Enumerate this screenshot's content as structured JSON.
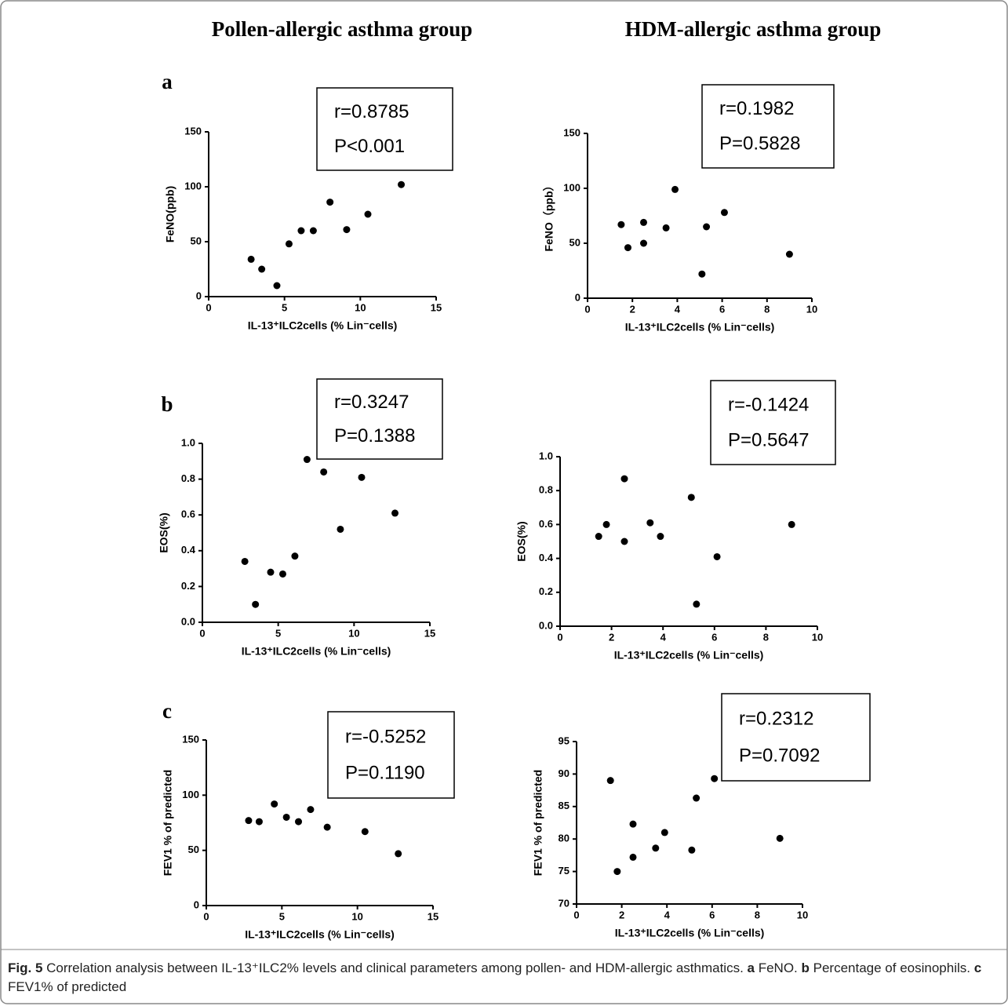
{
  "headers": [
    "Pollen-allergic asthma group",
    "HDM-allergic asthma group"
  ],
  "panels": [
    "a",
    "b",
    "c"
  ],
  "caption": [
    {
      "text": "Fig. 5",
      "bold": true
    },
    {
      "text": "  Correlation analysis between IL-13⁺ILC2% levels and clinical parameters among pollen- and HDM-allergic asthmatics. ",
      "bold": false
    },
    {
      "text": "a",
      "bold": true
    },
    {
      "text": " FeNO. ",
      "bold": false
    },
    {
      "text": "b",
      "bold": true
    },
    {
      "text": " Percentage of eosinophils. ",
      "bold": false
    },
    {
      "text": "c",
      "bold": true
    },
    {
      "text": " FEV1% of predicted",
      "bold": false
    }
  ],
  "chart_data": [
    {
      "type": "scatter",
      "color": "#000000",
      "xlabel": "IL-13⁺ILC2cells (% Lin⁻cells)",
      "ylabel": "FeNO(ppb)",
      "annotations": [
        "r=0.8785",
        "P<0.001"
      ],
      "x": [
        2.8,
        3.5,
        4.5,
        5.3,
        6.1,
        6.9,
        8.0,
        9.1,
        10.5,
        12.7
      ],
      "values": [
        34,
        25,
        10,
        48,
        60,
        60,
        86,
        61,
        75,
        102
      ],
      "xlim": [
        0,
        15
      ],
      "xticks": [
        0,
        5,
        10,
        15
      ],
      "ylim": [
        0,
        150
      ],
      "yticks": [
        0,
        50,
        100,
        150
      ]
    },
    {
      "type": "scatter",
      "color": "#000000",
      "xlabel": "IL-13⁺ILC2cells (% Lin⁻cells)",
      "ylabel": "FeNO（ppb）",
      "annotations": [
        "r=0.1982",
        "P=0.5828"
      ],
      "x": [
        1.5,
        1.8,
        2.5,
        2.5,
        3.5,
        3.9,
        5.1,
        5.3,
        6.1,
        9.0
      ],
      "values": [
        67,
        46,
        69,
        50,
        64,
        99,
        22,
        65,
        78,
        40
      ],
      "xlim": [
        0,
        10
      ],
      "xticks": [
        0,
        2,
        4,
        6,
        8,
        10
      ],
      "ylim": [
        0,
        150
      ],
      "yticks": [
        0,
        50,
        100,
        150
      ]
    },
    {
      "type": "scatter",
      "color": "#000000",
      "xlabel": "IL-13⁺ILC2cells (% Lin⁻cells)",
      "ylabel": "EOS(%)",
      "annotations": [
        "r=0.3247",
        "P=0.1388"
      ],
      "x": [
        2.8,
        3.5,
        4.5,
        5.3,
        6.1,
        6.9,
        8.0,
        9.1,
        10.5,
        12.7
      ],
      "values": [
        0.34,
        0.1,
        0.28,
        0.27,
        0.37,
        0.91,
        0.84,
        0.52,
        0.81,
        0.61
      ],
      "xlim": [
        0,
        15
      ],
      "xticks": [
        0,
        5,
        10,
        15
      ],
      "ylim": [
        0,
        1
      ],
      "yticks": [
        {
          "value": 0,
          "label": "0.0"
        },
        0.2,
        0.4,
        0.6,
        0.8,
        {
          "value": 1,
          "label": "1.0"
        }
      ]
    },
    {
      "type": "scatter",
      "color": "#000000",
      "xlabel": "IL-13⁺ILC2cells (% Lin⁻cells)",
      "ylabel": "EOS(%)",
      "annotations": [
        "r=-0.1424",
        "P=0.5647"
      ],
      "x": [
        1.5,
        1.8,
        2.5,
        2.5,
        3.5,
        3.9,
        5.1,
        5.3,
        6.1,
        9.0
      ],
      "values": [
        0.53,
        0.6,
        0.87,
        0.5,
        0.61,
        0.53,
        0.76,
        0.13,
        0.41,
        0.6
      ],
      "xlim": [
        0,
        10
      ],
      "xticks": [
        0,
        2,
        4,
        6,
        8,
        10
      ],
      "ylim": [
        0,
        1
      ],
      "yticks": [
        {
          "value": 0,
          "label": "0.0"
        },
        0.2,
        0.4,
        0.6,
        0.8,
        {
          "value": 1,
          "label": "1.0"
        }
      ]
    },
    {
      "type": "scatter",
      "color": "#000000",
      "xlabel": "IL-13⁺ILC2cells (% Lin⁻cells)",
      "ylabel": "FEV1 % of predicted",
      "annotations": [
        "r=-0.5252",
        "P=0.1190"
      ],
      "x": [
        2.8,
        3.5,
        4.5,
        5.3,
        6.1,
        6.9,
        8.0,
        10.5,
        12.7
      ],
      "values": [
        77,
        76,
        92,
        80,
        76,
        87,
        71,
        67,
        47
      ],
      "xlim": [
        0,
        15
      ],
      "xticks": [
        0,
        5,
        10,
        15
      ],
      "ylim": [
        0,
        150
      ],
      "yticks": [
        0,
        50,
        100,
        150
      ]
    },
    {
      "type": "scatter",
      "color": "#000000",
      "xlabel": "IL-13⁺ILC2cells (% Lin⁻cells)",
      "ylabel": "FEV1 % of predicted",
      "annotations": [
        "r=0.2312",
        "P=0.7092"
      ],
      "x": [
        1.5,
        1.8,
        2.5,
        2.5,
        3.5,
        3.9,
        5.1,
        5.3,
        6.1,
        9.0
      ],
      "values": [
        89,
        75,
        82.3,
        77.2,
        78.6,
        81,
        78.3,
        86.3,
        89.3,
        80.1
      ],
      "xlim": [
        0,
        10
      ],
      "xticks": [
        0,
        2,
        4,
        6,
        8,
        10
      ],
      "ylim": [
        70,
        95
      ],
      "yticks": [
        70,
        75,
        80,
        85,
        90,
        95
      ]
    }
  ]
}
